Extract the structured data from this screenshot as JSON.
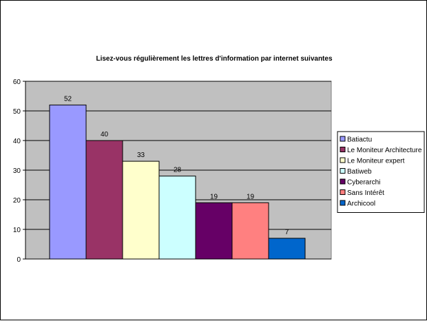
{
  "chart_data": {
    "type": "bar",
    "title": "Lisez-vous régulièrement les lettres d'information par internet suivantes",
    "xlabel": "",
    "ylabel": "",
    "ylim": [
      0,
      60
    ],
    "yticks": [
      0,
      10,
      20,
      30,
      40,
      50,
      60
    ],
    "grid": true,
    "legend_position": "right",
    "plot_background": "#c0c0c0",
    "series": [
      {
        "name": "Batiactu",
        "value": 52,
        "color": "#9999ff"
      },
      {
        "name": "Le Moniteur Architecture",
        "value": 40,
        "color": "#993366"
      },
      {
        "name": "Le Moniteur expert",
        "value": 33,
        "color": "#ffffcc"
      },
      {
        "name": "Batiweb",
        "value": 28,
        "color": "#ccffff"
      },
      {
        "name": "Cyberarchi",
        "value": 19,
        "color": "#660066"
      },
      {
        "name": "Sans Intérêt",
        "value": 19,
        "color": "#ff8080"
      },
      {
        "name": "Archicool",
        "value": 7,
        "color": "#0066cc"
      }
    ]
  }
}
